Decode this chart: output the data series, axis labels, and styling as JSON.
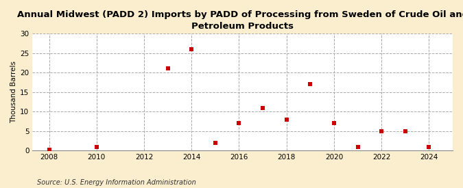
{
  "title": "Annual Midwest (PADD 2) Imports by PADD of Processing from Sweden of Crude Oil and\nPetroleum Products",
  "ylabel": "Thousand Barrels",
  "source": "Source: U.S. Energy Information Administration",
  "background_color": "#faeece",
  "plot_background_color": "#ffffff",
  "marker_color": "#cc0000",
  "marker": "s",
  "marker_size": 16,
  "xlim": [
    2007.3,
    2025.0
  ],
  "ylim": [
    0,
    30
  ],
  "yticks": [
    0,
    5,
    10,
    15,
    20,
    25,
    30
  ],
  "xticks": [
    2008,
    2010,
    2012,
    2014,
    2016,
    2018,
    2020,
    2022,
    2024
  ],
  "data": {
    "2008": 0.3,
    "2010": 1,
    "2013": 21,
    "2014": 26,
    "2015": 2,
    "2016": 7,
    "2017": 11,
    "2018": 8,
    "2019": 17,
    "2020": 7,
    "2021": 1,
    "2022": 5,
    "2023": 5,
    "2024": 1
  }
}
